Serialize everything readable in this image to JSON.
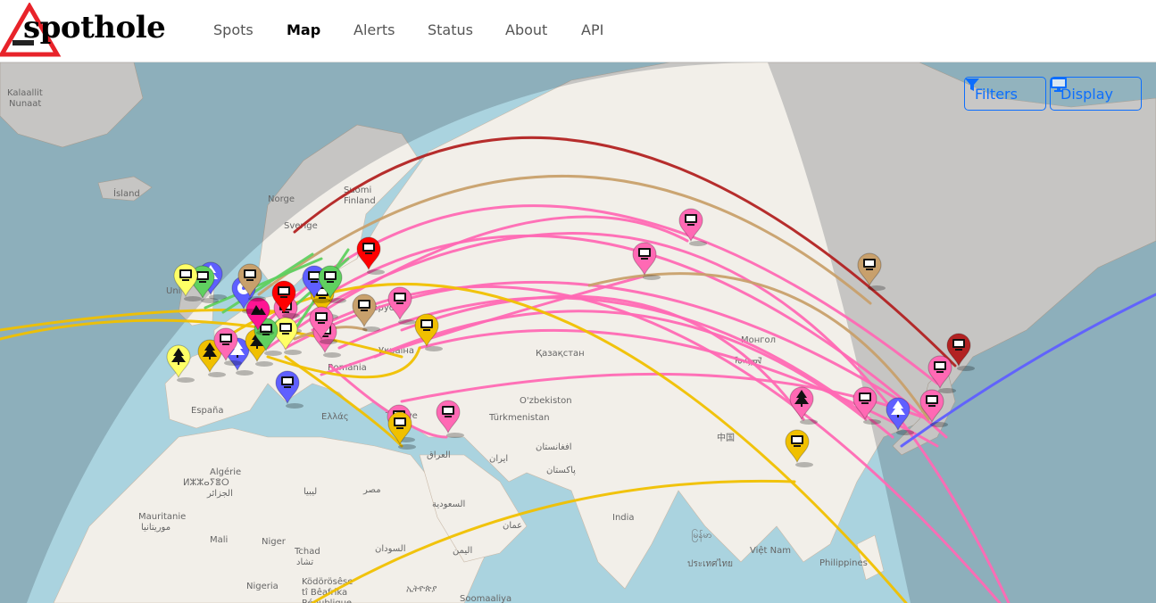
{
  "brand": {
    "name": "spothole"
  },
  "nav": {
    "items": [
      {
        "label": "Spots"
      },
      {
        "label": "Map",
        "active": true
      },
      {
        "label": "Alerts"
      },
      {
        "label": "Status"
      },
      {
        "label": "About"
      },
      {
        "label": "API"
      }
    ]
  },
  "controls": {
    "filters_label": "Filters",
    "filters_icon": "filter-icon",
    "display_label": "Display",
    "display_icon": "monitor-icon",
    "color": "#0d6efd"
  },
  "map": {
    "labels": [
      "Kalaallit",
      "Nunaat",
      "Ísland",
      "Norge",
      "Sverige",
      "Suomi",
      "Finland",
      "Беларусь",
      "Україна",
      "România",
      "España",
      "Ελλάς",
      "Türkiye",
      "Қазақстан",
      "Монгол",
      "ᠮᠣᠩᠭᠣᠯ",
      "O'zbekiston",
      "Türkmenistan",
      "Algérie",
      "ⵍⵣⵣⴰⵢⴻⵔ",
      "الجزائر",
      "ليبيا",
      "مصر",
      "Mauritanie",
      "موريتانيا",
      "Mali",
      "Niger",
      "Tchad",
      "تشاد",
      "السودان",
      "Nigeria",
      "Ködörösêse",
      "tî Bêafrîka",
      "République",
      "ኢትዮጵያ",
      "Soomaaliya",
      "السعودية",
      "عمان",
      "اليمن",
      "العراق",
      "ایران",
      "افغانستان",
      "پاکستان",
      "India",
      "中国",
      "မြန်မာ",
      "ประเทศไทย",
      "Việt Nam",
      "Philippines",
      "Uni"
    ],
    "colors": {
      "ocean": "#aad3df",
      "land": "#f2efe9",
      "night": "rgba(40,50,60,0.22)"
    },
    "markers": [
      {
        "color": "#ff69b4",
        "icon": "monitor"
      },
      {
        "color": "#ff69b4",
        "icon": "monitor"
      },
      {
        "color": "#c8a06c",
        "icon": "monitor"
      },
      {
        "color": "#ff0000",
        "icon": "monitor"
      },
      {
        "color": "#b22222",
        "icon": "monitor"
      },
      {
        "color": "#ff69b4",
        "icon": "monitor"
      },
      {
        "color": "#ff69b4",
        "icon": "monitor"
      },
      {
        "color": "#ff69b4",
        "icon": "monitor"
      },
      {
        "color": "#ff69b4",
        "icon": "tree"
      },
      {
        "color": "#ff69b4",
        "icon": "monitor"
      },
      {
        "color": "#5f5fff",
        "icon": "tree"
      },
      {
        "color": "#ff69b4",
        "icon": "monitor"
      },
      {
        "color": "#f0c000",
        "icon": "monitor"
      },
      {
        "color": "#ff69b4",
        "icon": "monitor"
      },
      {
        "color": "#f0c000",
        "icon": "monitor"
      },
      {
        "color": "#ff69b4",
        "icon": "monitor"
      },
      {
        "color": "#f0c000",
        "icon": "monitor"
      },
      {
        "color": "#c8a06c",
        "icon": "monitor"
      },
      {
        "color": "#ff69b4",
        "icon": "monitor"
      },
      {
        "color": "#5f5fff",
        "icon": "monitor"
      },
      {
        "color": "#ffff66",
        "icon": "tree"
      },
      {
        "color": "#f0c000",
        "icon": "tree"
      },
      {
        "color": "#5f5fff",
        "icon": "tree"
      },
      {
        "color": "#f0c000",
        "icon": "tree"
      },
      {
        "color": "#ffff66",
        "icon": "monitor"
      },
      {
        "color": "#ff69b4",
        "icon": "monitor"
      },
      {
        "color": "#60d060",
        "icon": "monitor"
      },
      {
        "color": "#f0c000",
        "icon": "monitor"
      },
      {
        "color": "#ff0000",
        "icon": "monitor"
      },
      {
        "color": "#5f5fff",
        "icon": "monitor"
      },
      {
        "color": "#60d060",
        "icon": "monitor"
      },
      {
        "color": "#ff1493",
        "icon": "mountain"
      },
      {
        "color": "#5f5fff",
        "icon": "radiation"
      },
      {
        "color": "#c8a06c",
        "icon": "monitor"
      },
      {
        "color": "#5f5fff",
        "icon": "tree"
      },
      {
        "color": "#60d060",
        "icon": "monitor"
      },
      {
        "color": "#ffff66",
        "icon": "monitor"
      },
      {
        "color": "#ff69b4",
        "icon": "monitor"
      }
    ],
    "arc_colors": [
      "#ff69b4",
      "#f0c000",
      "#c8a06c",
      "#b22222",
      "#5f5fff",
      "#60d060"
    ]
  }
}
